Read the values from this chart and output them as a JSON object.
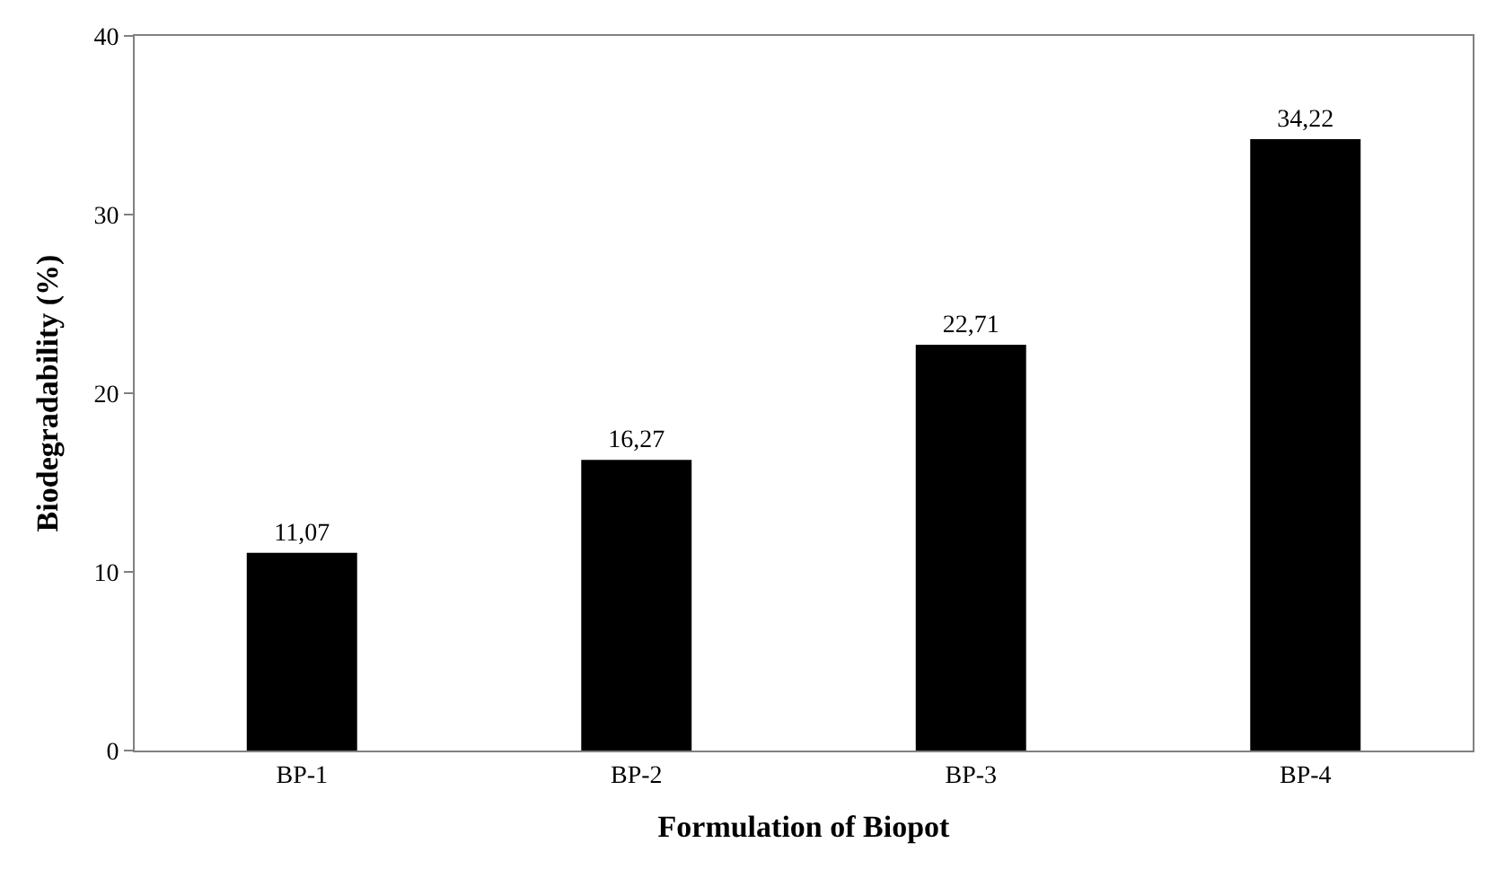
{
  "chart_data": {
    "type": "bar",
    "xlabel": "Formulation of Biopot",
    "ylabel": "Biodegradability (%)",
    "categories": [
      "BP-1",
      "BP-2",
      "BP-3",
      "BP-4"
    ],
    "values": [
      11.07,
      16.27,
      22.71,
      34.22
    ],
    "value_labels": [
      "11,07",
      "16,27",
      "22,71",
      "34,22"
    ],
    "color": "#000000",
    "ylim": [
      0,
      40
    ],
    "yticks": [
      0,
      10,
      20,
      30,
      40
    ],
    "grid": false,
    "legend": false
  }
}
